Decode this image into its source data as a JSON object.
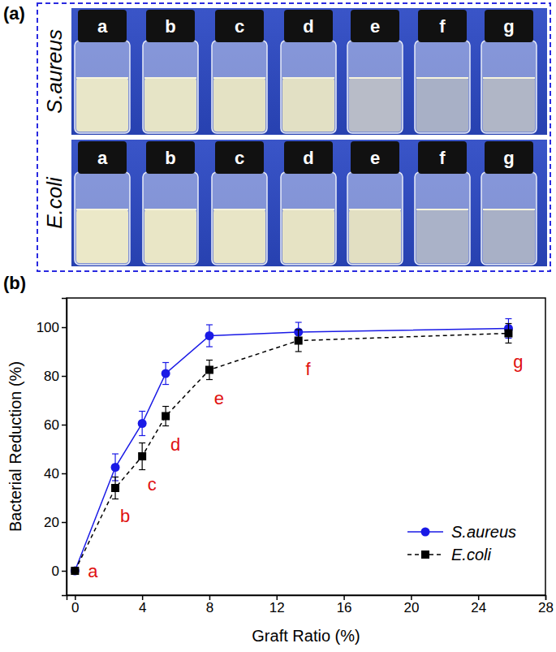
{
  "photo_panel": {
    "label": "(a)",
    "rows": [
      {
        "name": "S.aureus",
        "vials": [
          "a",
          "b",
          "c",
          "d",
          "e",
          "f",
          "g"
        ]
      },
      {
        "name": "E.coli",
        "vials": [
          "a",
          "b",
          "c",
          "d",
          "e",
          "f",
          "g"
        ]
      }
    ]
  },
  "chart_data": {
    "type": "line",
    "title": "(b)",
    "x_label": "Graft Ratio (%)",
    "y_label": "Bacterial Reduction (%)",
    "xlim": [
      -0.5,
      28
    ],
    "ylim": [
      -10,
      112
    ],
    "xticks": [
      0,
      4,
      8,
      12,
      16,
      20,
      24,
      28
    ],
    "yticks": [
      0,
      20,
      40,
      60,
      80,
      100
    ],
    "grid": false,
    "legend": "lower right",
    "x": [
      0,
      2.4,
      4,
      5.4,
      8,
      13.3,
      25.8
    ],
    "series": [
      {
        "name": "S.aureus",
        "color": "#1a1ae6",
        "marker": "circle",
        "line_style": "solid",
        "values": [
          0,
          42.5,
          60.5,
          81,
          96.5,
          98,
          99.5
        ],
        "errors": [
          0,
          5.5,
          5,
          4.5,
          4.5,
          4,
          4
        ]
      },
      {
        "name": "E.coli",
        "color": "#000000",
        "marker": "square",
        "line_style": "dashed",
        "values": [
          0,
          34,
          47,
          63.5,
          82.5,
          94.5,
          97.5
        ],
        "errors": [
          0,
          4.5,
          5.5,
          4,
          4,
          4.5,
          4
        ],
        "point_labels": [
          "a",
          "b",
          "c",
          "d",
          "e",
          "f",
          "g"
        ]
      }
    ]
  }
}
